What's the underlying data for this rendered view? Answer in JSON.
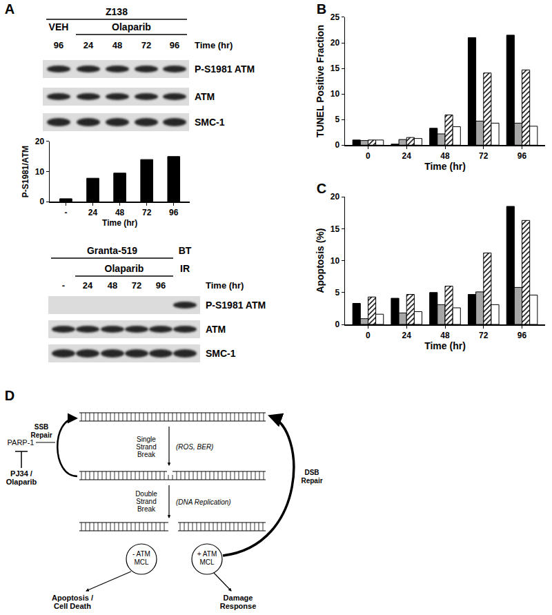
{
  "panel_labels": [
    "A",
    "B",
    "C",
    "D"
  ],
  "blots": [
    {
      "title_row": [
        "Z138",
        "Z138",
        "Z138",
        "Z138",
        "Z138"
      ],
      "treatment_row": [
        "VEH",
        "Olaparib",
        "Olaparib",
        "Olaparib",
        "Olaparib"
      ],
      "time_row": [
        "96",
        "24",
        "48",
        "72",
        "96"
      ],
      "time_label": "Time (hr)",
      "rows": [
        {
          "label": "P-S1981 ATM",
          "bands": [
            true,
            true,
            true,
            true,
            true
          ]
        },
        {
          "label": "ATM",
          "bands": [
            true,
            true,
            true,
            true,
            true
          ]
        },
        {
          "label": "SMC-1",
          "bands": [
            true,
            true,
            true,
            true,
            true
          ]
        }
      ]
    },
    {
      "title_row": [
        "Granta-519",
        "Granta-519",
        "Granta-519",
        "Granta-519",
        "Granta-519",
        "BT"
      ],
      "treatment_row": [
        null,
        "Olaparib",
        "Olaparib",
        "Olaparib",
        "Olaparib",
        "IR"
      ],
      "time_row": [
        "-",
        "24",
        "48",
        "72",
        "96",
        null
      ],
      "time_label": "Time (hr)",
      "rows": [
        {
          "label": "P-S1981 ATM",
          "bands": [
            false,
            false,
            false,
            false,
            false,
            true
          ]
        },
        {
          "label": "ATM",
          "bands": [
            true,
            true,
            true,
            true,
            true,
            true
          ]
        },
        {
          "label": "SMC-1",
          "bands": [
            true,
            true,
            true,
            true,
            true,
            true
          ]
        }
      ]
    }
  ],
  "chart_data": [
    {
      "type": "bar",
      "categories": [
        "-",
        "24",
        "48",
        "72",
        "96"
      ],
      "values": [
        1,
        7.8,
        9.5,
        14,
        15
      ],
      "color": "#000000",
      "x_label": "Time (hr)",
      "y_label": "P-S1981/ATM",
      "ylim": [
        0,
        20
      ],
      "yticks": [
        0,
        10,
        20
      ],
      "grid": false
    },
    {
      "type": "bar",
      "categories": [
        "0",
        "24",
        "48",
        "72",
        "96"
      ],
      "series": [
        {
          "color": "#000000",
          "marker": "solid",
          "values": [
            1,
            0.2,
            3.3,
            21,
            21.5
          ]
        },
        {
          "color": "#a6a6a6",
          "marker": "solid",
          "values": [
            0.9,
            1.1,
            2.2,
            4.7,
            4.3
          ]
        },
        {
          "color": "#000000",
          "marker": "hatched",
          "values": [
            1,
            1.5,
            5.9,
            14.1,
            14.7
          ]
        },
        {
          "color": "#ffffff",
          "marker": "solid",
          "values": [
            1,
            1.3,
            3.6,
            4.3,
            3.7
          ]
        }
      ],
      "x_label": "Time (hr)",
      "y_label": "TUNEL Positive Fraction",
      "ylim": [
        0,
        25
      ],
      "yticks": [
        0,
        5,
        10,
        15,
        20,
        25
      ],
      "grid": false
    },
    {
      "type": "bar",
      "categories": [
        "0",
        "24",
        "48",
        "72",
        "96"
      ],
      "series": [
        {
          "color": "#000000",
          "marker": "solid",
          "values": [
            3.3,
            4.1,
            5.0,
            4.7,
            18.5
          ]
        },
        {
          "color": "#a6a6a6",
          "marker": "solid",
          "values": [
            0.9,
            1.8,
            3.1,
            5.1,
            5.8
          ]
        },
        {
          "color": "#000000",
          "marker": "hatched",
          "values": [
            4.3,
            4.7,
            6.0,
            11.2,
            16.3
          ]
        },
        {
          "color": "#ffffff",
          "marker": "solid",
          "values": [
            1.6,
            2.0,
            2.6,
            3.1,
            4.6
          ]
        }
      ],
      "x_label": "Time (hr)",
      "y_label": "Apoptosis (%)",
      "ylim": [
        0,
        20
      ],
      "yticks": [
        0,
        5,
        10,
        15,
        20
      ],
      "grid": false
    }
  ],
  "diagram": {
    "target": "PARP-1",
    "inhibitor": [
      "PJ34 /",
      "Olaparib"
    ],
    "ssb_repair": [
      "SSB",
      "Repair"
    ],
    "ssb": [
      "Single",
      "Strand",
      "Break"
    ],
    "ssb_cause": "(ROS, BER)",
    "dsb": [
      "Double",
      "Strand",
      "Break"
    ],
    "dsb_cause": "(DNA Replication)",
    "dsb_repair": [
      "DSB",
      "Repair"
    ],
    "atm_negative": [
      "- ATM",
      "MCL"
    ],
    "atm_positive": [
      "+ ATM",
      "MCL"
    ],
    "outcome_negative": [
      "Apoptosis /",
      "Cell Death"
    ],
    "outcome_positive": [
      "Damage",
      "Response"
    ]
  }
}
